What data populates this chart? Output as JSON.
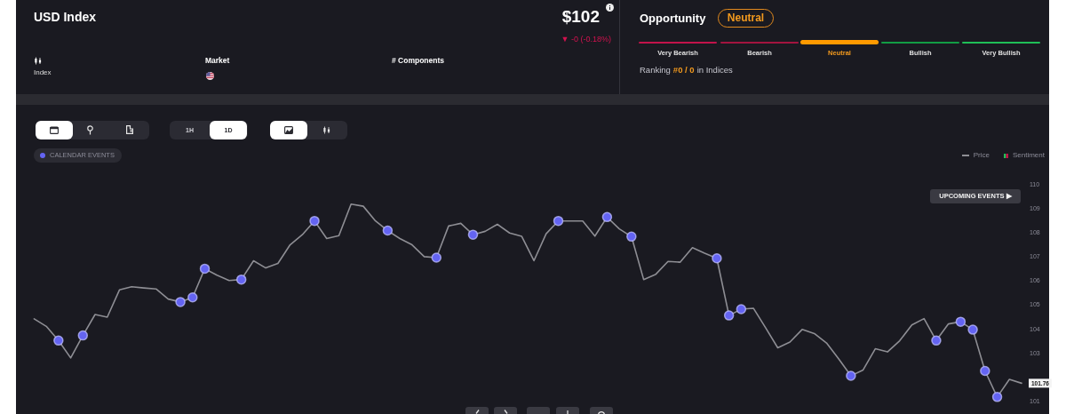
{
  "chart_data": {
    "type": "line",
    "title": "USD Index",
    "categories": [
      null,
      null,
      null,
      null,
      null,
      null,
      null,
      null,
      null,
      null,
      null,
      null,
      null,
      null,
      null,
      null,
      null,
      null,
      null,
      null,
      null,
      null,
      null,
      null,
      null,
      null,
      null,
      null,
      null,
      null,
      null,
      null,
      null,
      null,
      null,
      null,
      null,
      null,
      null,
      null,
      null,
      null,
      null,
      null,
      null,
      null,
      null,
      null,
      null,
      null,
      null,
      null,
      null,
      null,
      null,
      null,
      null,
      null,
      null,
      null,
      null,
      null,
      null,
      null,
      null,
      null,
      null,
      null,
      null,
      null,
      null,
      null,
      null,
      null,
      null,
      null,
      null,
      null,
      null,
      null,
      null,
      null
    ],
    "series": [
      {
        "name": "Price",
        "color": "#8e8e94",
        "values": [
          104.43,
          104.12,
          103.53,
          102.81,
          103.74,
          104.61,
          104.5,
          105.63,
          105.76,
          105.71,
          105.67,
          105.25,
          105.13,
          105.32,
          106.51,
          106.24,
          106.02,
          106.06,
          106.84,
          106.54,
          106.73,
          107.5,
          107.92,
          108.49,
          107.76,
          107.88,
          109.19,
          109.1,
          108.49,
          108.09,
          107.76,
          107.5,
          107.01,
          106.97,
          108.28,
          108.39,
          107.92,
          108.06,
          108.35,
          107.99,
          107.85,
          106.84,
          107.96,
          108.49,
          108.49,
          108.49,
          107.86,
          108.65,
          108.16,
          107.84,
          106.06,
          106.28,
          106.81,
          106.78,
          107.38,
          107.15,
          106.94,
          104.57,
          104.83,
          104.87,
          104.06,
          103.23,
          103.47,
          103.99,
          103.82,
          103.43,
          102.77,
          102.07,
          102.31,
          103.19,
          103.06,
          103.52,
          104.18,
          104.44,
          103.53,
          104.22,
          104.31,
          103.98,
          102.27,
          101.19,
          101.92,
          101.76
        ],
        "value_labels": [
          null,
          null,
          null,
          null,
          null,
          null,
          null,
          null,
          null,
          null,
          null,
          null,
          null,
          null,
          null,
          null,
          null,
          null,
          null,
          null,
          null,
          null,
          null,
          null,
          null,
          null,
          null,
          null,
          null,
          null,
          null,
          null,
          null,
          null,
          null,
          null,
          null,
          null,
          null,
          null,
          null,
          null,
          null,
          null,
          null,
          null,
          null,
          null,
          null,
          null,
          null,
          null,
          null,
          null,
          null,
          null,
          null,
          null,
          null,
          null,
          null,
          null,
          null,
          null,
          null,
          null,
          null,
          null,
          null,
          null,
          null,
          null,
          null,
          null,
          null,
          null,
          null,
          null,
          null,
          null,
          null,
          "101.76"
        ]
      },
      {
        "name": "CALENDAR EVENTS",
        "type": "scatter",
        "color": "#6464f2",
        "values": [
          null,
          null,
          103.53,
          null,
          103.74,
          null,
          null,
          null,
          null,
          null,
          null,
          null,
          105.13,
          105.32,
          106.51,
          null,
          null,
          106.06,
          null,
          null,
          null,
          null,
          null,
          108.49,
          null,
          null,
          null,
          null,
          null,
          108.09,
          null,
          null,
          null,
          106.97,
          null,
          null,
          107.92,
          null,
          null,
          null,
          null,
          null,
          null,
          108.49,
          null,
          null,
          null,
          108.65,
          null,
          107.84,
          null,
          null,
          null,
          null,
          null,
          null,
          106.94,
          104.57,
          104.83,
          null,
          null,
          null,
          null,
          null,
          null,
          null,
          null,
          102.07,
          null,
          null,
          null,
          null,
          null,
          null,
          103.53,
          null,
          104.31,
          103.98,
          102.27,
          101.19,
          null,
          null
        ]
      }
    ],
    "ylim": [
      101,
      110
    ],
    "yticks": [
      101,
      103,
      104,
      105,
      106,
      107,
      108,
      109,
      110
    ],
    "tick_labels": "y",
    "legend": "top right",
    "annotations": [
      "$102",
      "▼ -0 (-0.18%)",
      "Index",
      "Market",
      "# Components",
      "Opportunity",
      "Neutral",
      "Very Bearish",
      "Bearish",
      "Neutral",
      "Bullish",
      "Very Bullish",
      "Ranking",
      "#0 / 0",
      "in Indices",
      "1H",
      "1D",
      "Sentiment",
      "UPCOMING EVENTS ▶"
    ]
  }
}
